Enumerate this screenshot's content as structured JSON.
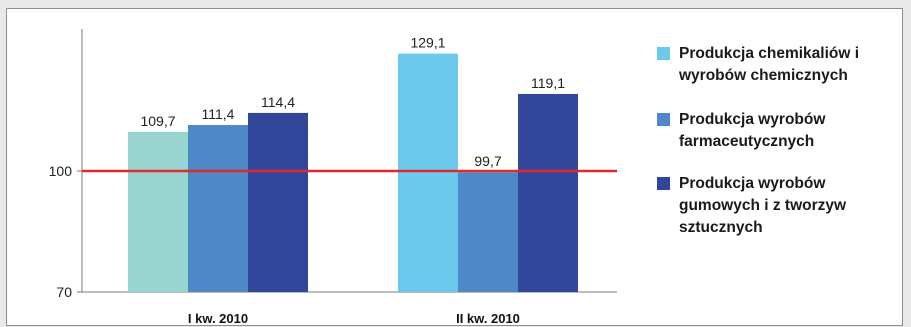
{
  "chart_data": {
    "type": "bar",
    "categories": [
      "I kw. 2010",
      "II kw. 2010"
    ],
    "series": [
      {
        "name": "Produkcja chemikaliów i\nwyrobów chemicznych",
        "values": [
          109.7,
          129.1
        ]
      },
      {
        "name": "Produkcja wyrobów\nfarmaceutycznych",
        "values": [
          111.4,
          99.7
        ]
      },
      {
        "name": "Produkcja wyrobów\ngumowych i z tworzyw\nsztucznych",
        "values": [
          114.4,
          119.1
        ]
      }
    ],
    "value_labels": [
      [
        "109,7",
        "129,1"
      ],
      [
        "111,4",
        "99,7"
      ],
      [
        "114,4",
        "119,1"
      ]
    ],
    "series_colors": [
      [
        "#98d4d0",
        "#6cc9ec"
      ],
      [
        "#4f88c6",
        "#4f88c6"
      ],
      [
        "#33479a",
        "#33479a"
      ]
    ],
    "legend_colors": [
      "#6cc9ec",
      "#4f88c6",
      "#33479a"
    ],
    "yticks": [
      70,
      100
    ],
    "ytick_labels": [
      "70",
      "100"
    ],
    "ylim": [
      70,
      135
    ],
    "reference_line": {
      "value": 100,
      "color": "#e0282e"
    },
    "legend_position": "right"
  }
}
